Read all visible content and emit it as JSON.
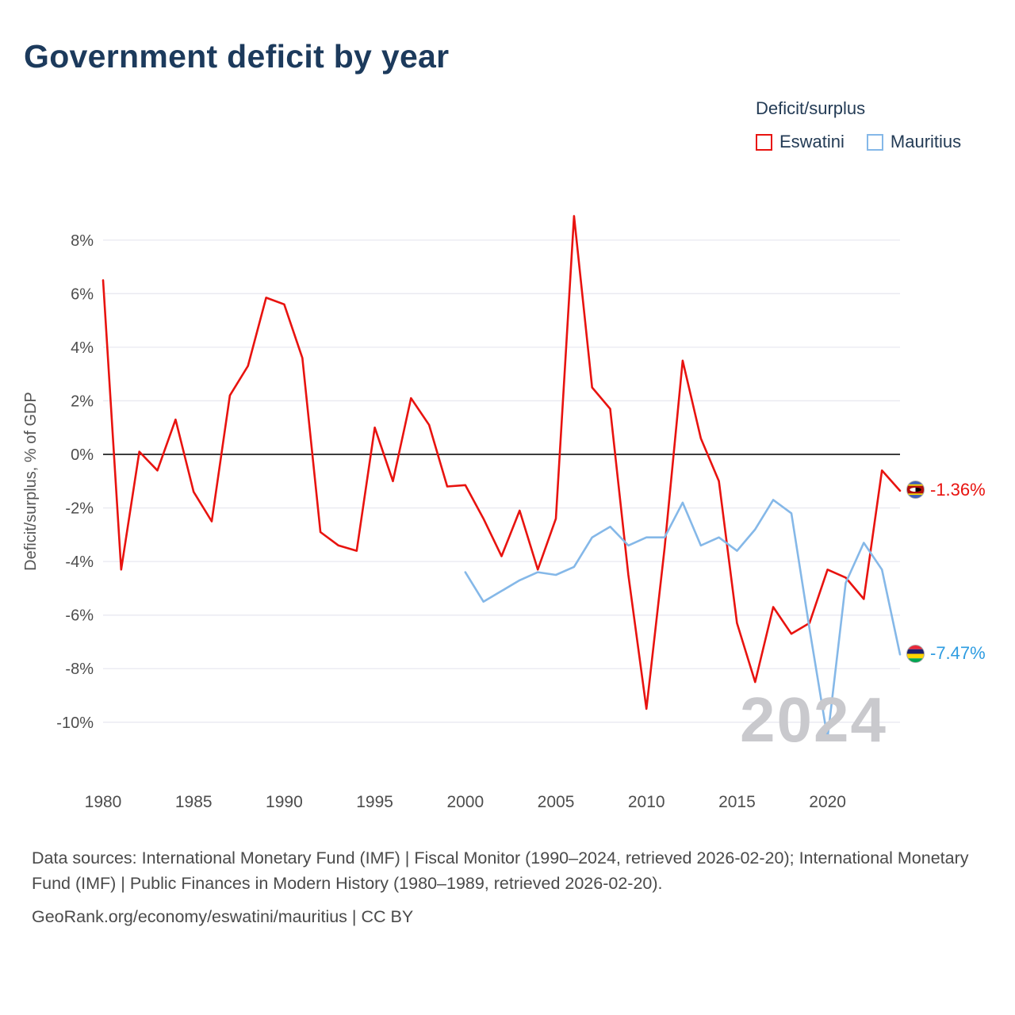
{
  "title": "Government deficit by year",
  "legend": {
    "title": "Deficit/surplus",
    "items": [
      {
        "label": "Eswatini",
        "color": "#e8130f"
      },
      {
        "label": "Mauritius",
        "color": "#85b8e8"
      }
    ]
  },
  "end_labels": [
    {
      "label": "-1.36%",
      "color": "#e8130f",
      "flag": "eswatini-flag-icon"
    },
    {
      "label": "-7.47%",
      "color": "#2e9ce1",
      "flag": "mauritius-flag-icon"
    }
  ],
  "watermark": "2024",
  "footer": {
    "sources": "Data sources: International Monetary Fund (IMF) | Fiscal Monitor (1990–2024, retrieved 2026-02-20); International Monetary Fund (IMF) | Public Finances in Modern History (1980–1989, retrieved 2026-02-20).",
    "attribution": "GeoRank.org/economy/eswatini/mauritius | CC BY"
  },
  "chart_data": {
    "type": "line",
    "title": "Government deficit by year",
    "xlabel": "",
    "ylabel": "Deficit/surplus, % of GDP",
    "x_range": [
      1980,
      2024
    ],
    "ylim": [
      -11,
      9
    ],
    "y_ticks": [
      8,
      6,
      4,
      2,
      0,
      -2,
      -4,
      -6,
      -8,
      -10
    ],
    "x_ticks": [
      1980,
      1985,
      1990,
      1995,
      2000,
      2005,
      2010,
      2015,
      2020
    ],
    "grid": true,
    "zero_line": true,
    "legend_position": "top-right",
    "series": [
      {
        "name": "Eswatini",
        "color": "#e8130f",
        "start_year": 1980,
        "values": [
          6.5,
          -4.3,
          0.1,
          -0.6,
          1.3,
          -1.4,
          -2.5,
          2.2,
          3.3,
          5.85,
          5.6,
          3.6,
          -2.9,
          -3.4,
          -3.6,
          1.0,
          -1.0,
          2.1,
          1.1,
          -1.2,
          -1.15,
          -2.4,
          -3.8,
          -2.1,
          -4.3,
          -2.4,
          8.9,
          2.5,
          1.7,
          -4.5,
          -9.5,
          -3.5,
          3.5,
          0.6,
          -1.0,
          -6.3,
          -8.5,
          -5.7,
          -6.7,
          -6.3,
          -4.3,
          -4.6,
          -5.4,
          -0.6,
          -1.36
        ]
      },
      {
        "name": "Mauritius",
        "color": "#85b8e8",
        "start_year": 2000,
        "values": [
          -4.4,
          -5.5,
          -5.1,
          -4.7,
          -4.4,
          -4.5,
          -4.2,
          -3.1,
          -2.7,
          -3.4,
          -3.1,
          -3.1,
          -1.8,
          -3.4,
          -3.1,
          -3.6,
          -2.8,
          -1.7,
          -2.2,
          -6.5,
          -10.6,
          -4.8,
          -3.3,
          -4.3,
          -7.47
        ]
      }
    ]
  }
}
